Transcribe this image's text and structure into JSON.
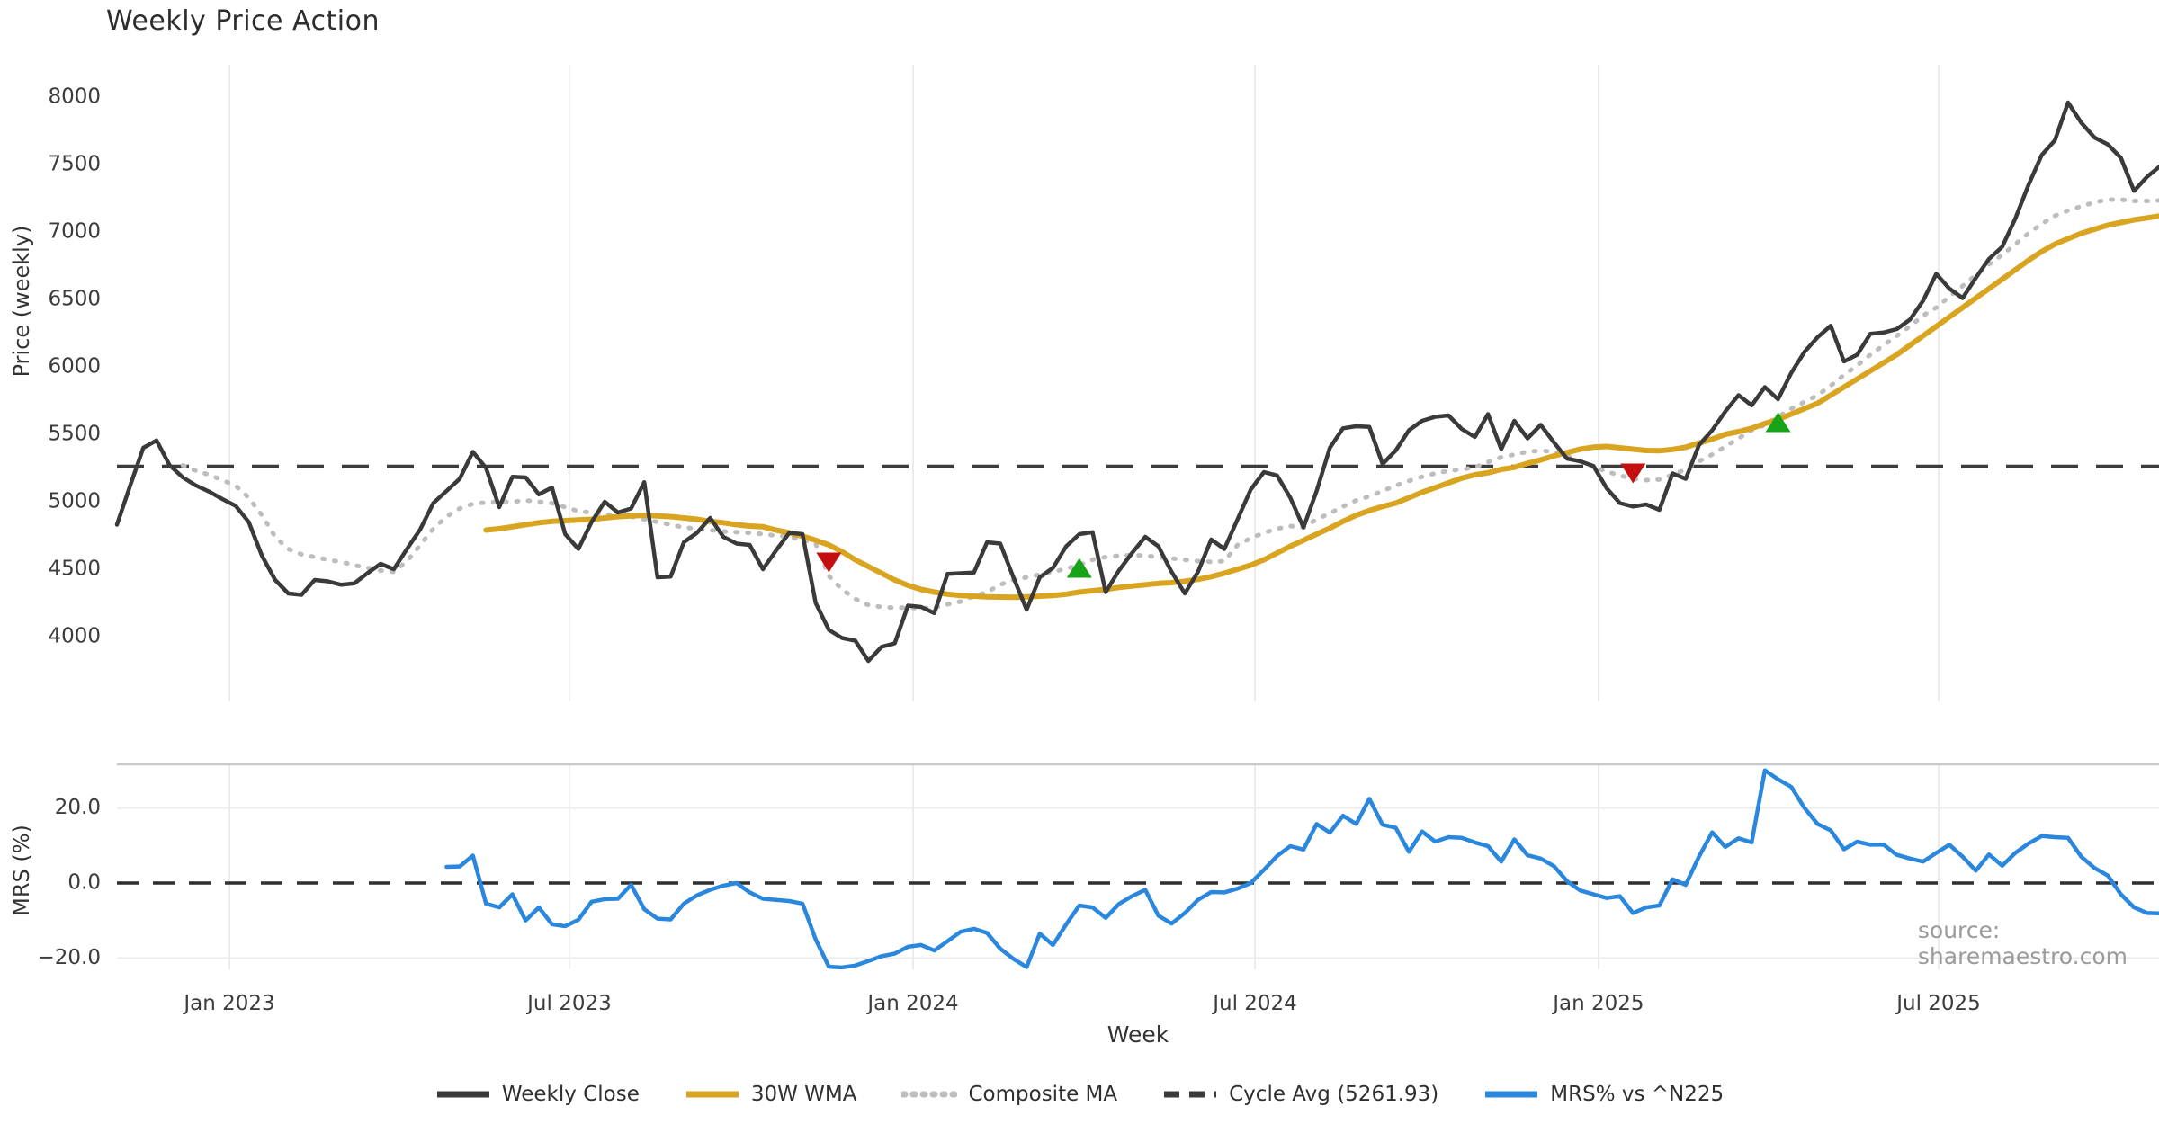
{
  "title": "Weekly Price Action",
  "source_note": "source: sharemaestro.com",
  "colors": {
    "weekly_close": "#3a3a3a",
    "wma_30w": "#d9a420",
    "composite_ma": "#bdbdbd",
    "cycle_avg": "#3b3b3b",
    "mrs": "#2a87de",
    "sell_marker": "#c40f0f",
    "buy_marker": "#17a317",
    "grid": "#ebebeb",
    "panel_border": "#c9c9c9",
    "tick_text": "#3c3c3c"
  },
  "chart_data": {
    "type": "line",
    "xlabel": "Week",
    "x_unit": "weekly index, week 0 = first plotted week (Nov 2022)",
    "weeks_total": 156,
    "xticks": [
      {
        "week": 8.53,
        "label": "Jan 2023"
      },
      {
        "week": 34.32,
        "label": "Jul 2023"
      },
      {
        "week": 60.39,
        "label": "Jan 2024"
      },
      {
        "week": 86.32,
        "label": "Jul 2024"
      },
      {
        "week": 112.38,
        "label": "Jan 2025"
      },
      {
        "week": 138.18,
        "label": "Jul 2025"
      }
    ],
    "panels": [
      {
        "ylabel": "Price (weekly)",
        "ylim": [
          3520,
          8320
        ],
        "yticks": [
          {
            "value": 4000,
            "label": "4000"
          },
          {
            "value": 4500,
            "label": "4500"
          },
          {
            "value": 5000,
            "label": "5000"
          },
          {
            "value": 5500,
            "label": "5500"
          },
          {
            "value": 6000,
            "label": "6000"
          },
          {
            "value": 6500,
            "label": "6500"
          },
          {
            "value": 7000,
            "label": "7000"
          },
          {
            "value": 7500,
            "label": "7500"
          },
          {
            "value": 8000,
            "label": "8000"
          }
        ],
        "hline": {
          "name": "Cycle Avg (5261.93)",
          "value": 5261.93,
          "style": "dashed",
          "color": "#3b3b3b"
        },
        "series": [
          {
            "name": "Composite MA",
            "color": "#bdbdbd",
            "style": "dotted",
            "width": 5,
            "start_week": 5,
            "values": [
              5270,
              5230,
              5200,
              5160,
              5120,
              5030,
              4900,
              4740,
              4650,
              4610,
              4590,
              4570,
              4555,
              4530,
              4510,
              4490,
              4480,
              4560,
              4680,
              4800,
              4890,
              4950,
              4985,
              4995,
              5000,
              5000,
              5010,
              5000,
              4990,
              4960,
              4930,
              4920,
              4905,
              4900,
              4890,
              4870,
              4850,
              4830,
              4810,
              4800,
              4790,
              4780,
              4775,
              4770,
              4760,
              4750,
              4740,
              4720,
              4690,
              4450,
              4350,
              4280,
              4235,
              4220,
              4215,
              4215,
              4210,
              4215,
              4240,
              4260,
              4300,
              4330,
              4385,
              4420,
              4440,
              4460,
              4480,
              4505,
              4530,
              4570,
              4590,
              4600,
              4605,
              4600,
              4590,
              4580,
              4570,
              4560,
              4555,
              4560,
              4680,
              4730,
              4770,
              4800,
              4820,
              4810,
              4870,
              4915,
              4965,
              5010,
              5040,
              5080,
              5120,
              5155,
              5185,
              5210,
              5230,
              5240,
              5255,
              5295,
              5330,
              5350,
              5370,
              5380,
              5370,
              5340,
              5300,
              5260,
              5225,
              5195,
              5170,
              5160,
              5165,
              5200,
              5240,
              5300,
              5350,
              5410,
              5470,
              5530,
              5570,
              5630,
              5690,
              5740,
              5790,
              5860,
              5940,
              6010,
              6090,
              6160,
              6230,
              6300,
              6380,
              6440,
              6520,
              6600,
              6680,
              6760,
              6830,
              6910,
              6990,
              7060,
              7120,
              7160,
              7190,
              7220,
              7240,
              7240,
              7230,
              7230,
              7235
            ]
          },
          {
            "name": "30W WMA",
            "color": "#d9a420",
            "style": "solid",
            "width": 6,
            "start_week": 28,
            "values": [
              4790,
              4800,
              4815,
              4830,
              4845,
              4855,
              4860,
              4865,
              4870,
              4880,
              4890,
              4895,
              4900,
              4895,
              4890,
              4880,
              4870,
              4855,
              4845,
              4830,
              4820,
              4815,
              4790,
              4770,
              4745,
              4715,
              4680,
              4630,
              4570,
              4520,
              4470,
              4420,
              4380,
              4350,
              4330,
              4315,
              4305,
              4300,
              4295,
              4293,
              4292,
              4295,
              4300,
              4305,
              4315,
              4330,
              4340,
              4350,
              4365,
              4375,
              4385,
              4395,
              4400,
              4410,
              4425,
              4445,
              4470,
              4500,
              4530,
              4570,
              4620,
              4670,
              4715,
              4760,
              4805,
              4855,
              4900,
              4935,
              4965,
              4990,
              5030,
              5070,
              5105,
              5140,
              5175,
              5200,
              5215,
              5240,
              5255,
              5285,
              5310,
              5340,
              5365,
              5390,
              5405,
              5410,
              5400,
              5390,
              5380,
              5378,
              5388,
              5405,
              5435,
              5465,
              5500,
              5520,
              5545,
              5580,
              5610,
              5650,
              5690,
              5730,
              5790,
              5850,
              5910,
              5970,
              6030,
              6090,
              6160,
              6230,
              6300,
              6370,
              6440,
              6510,
              6580,
              6650,
              6720,
              6790,
              6855,
              6910,
              6950,
              6990,
              7020,
              7050,
              7070,
              7090,
              7105,
              7120
            ]
          },
          {
            "name": "Weekly Close",
            "color": "#3a3a3a",
            "style": "solid",
            "width": 4.5,
            "start_week": 0,
            "values": [
              4830,
              5120,
              5400,
              5455,
              5270,
              5180,
              5120,
              5075,
              5020,
              4970,
              4850,
              4600,
              4420,
              4320,
              4310,
              4420,
              4410,
              4385,
              4395,
              4470,
              4540,
              4500,
              4650,
              4795,
              4990,
              5080,
              5170,
              5370,
              5250,
              4960,
              5185,
              5180,
              5055,
              5105,
              4760,
              4650,
              4850,
              5000,
              4920,
              4950,
              5145,
              4440,
              4445,
              4700,
              4770,
              4880,
              4740,
              4690,
              4680,
              4500,
              4640,
              4770,
              4760,
              4250,
              4050,
              3990,
              3970,
              3820,
              3925,
              3950,
              4230,
              4220,
              4175,
              4465,
              4470,
              4475,
              4700,
              4690,
              4440,
              4200,
              4440,
              4510,
              4670,
              4760,
              4775,
              4330,
              4490,
              4620,
              4740,
              4670,
              4480,
              4320,
              4480,
              4720,
              4650,
              4870,
              5090,
              5220,
              5195,
              5030,
              4810,
              5080,
              5400,
              5545,
              5560,
              5555,
              5280,
              5380,
              5530,
              5600,
              5630,
              5640,
              5540,
              5480,
              5650,
              5390,
              5600,
              5470,
              5570,
              5440,
              5320,
              5300,
              5265,
              5100,
              4990,
              4965,
              4980,
              4940,
              5210,
              5170,
              5420,
              5530,
              5670,
              5790,
              5715,
              5850,
              5760,
              5955,
              6110,
              6220,
              6305,
              6040,
              6090,
              6245,
              6255,
              6280,
              6350,
              6490,
              6690,
              6580,
              6510,
              6660,
              6800,
              6890,
              7100,
              7350,
              7570,
              7680,
              7960,
              7810,
              7700,
              7650,
              7550,
              7305,
              7410,
              7490
            ]
          }
        ],
        "markers": [
          {
            "type": "sell",
            "shape": "triangle-down",
            "color": "#c40f0f",
            "week": 54,
            "value": 4550
          },
          {
            "type": "buy",
            "shape": "triangle-up",
            "color": "#17a317",
            "week": 73,
            "value": 4510
          },
          {
            "type": "sell",
            "shape": "triangle-down",
            "color": "#c40f0f",
            "week": 115,
            "value": 5210
          },
          {
            "type": "buy",
            "shape": "triangle-up",
            "color": "#17a317",
            "week": 126,
            "value": 5590
          }
        ]
      },
      {
        "ylabel": "MRS (%)",
        "ylim": [
          -23,
          31.6
        ],
        "yticks": [
          {
            "value": -20,
            "label": "−20.0"
          },
          {
            "value": 0,
            "label": "0.0"
          },
          {
            "value": 20,
            "label": "20.0"
          }
        ],
        "hline": {
          "name": "zero line",
          "value": 0,
          "style": "dashed",
          "color": "#2f2f2f"
        },
        "grid_values": [
          20,
          -20
        ],
        "series": [
          {
            "name": "MRS% vs ^N225",
            "color": "#2a87de",
            "style": "solid",
            "width": 4.5,
            "start_week": 25,
            "values": [
              4.3,
              4.4,
              7.3,
              -5.5,
              -6.5,
              -3.0,
              -10.0,
              -6.5,
              -11.0,
              -11.5,
              -9.8,
              -5.0,
              -4.3,
              -4.2,
              -0.5,
              -7.0,
              -9.5,
              -9.7,
              -5.5,
              -3.3,
              -1.8,
              -0.7,
              0.0,
              -2.5,
              -4.2,
              -4.5,
              -4.8,
              -5.5,
              -15.0,
              -22.3,
              -22.5,
              -22.0,
              -20.8,
              -19.5,
              -18.8,
              -17.0,
              -16.5,
              -18.0,
              -15.5,
              -13.0,
              -12.2,
              -13.3,
              -17.5,
              -20.2,
              -22.4,
              -13.5,
              -16.5,
              -11.0,
              -6.0,
              -6.5,
              -9.3,
              -5.6,
              -3.5,
              -1.8,
              -8.7,
              -10.8,
              -8.0,
              -4.5,
              -2.4,
              -2.5,
              -1.5,
              0.0,
              3.5,
              7.2,
              9.8,
              8.9,
              15.7,
              13.4,
              17.9,
              15.7,
              22.4,
              15.5,
              14.7,
              8.3,
              13.7,
              11.0,
              12.2,
              12.0,
              10.8,
              9.8,
              5.7,
              11.6,
              7.4,
              6.5,
              4.5,
              0.5,
              -2.0,
              -3.0,
              -4.0,
              -3.5,
              -8.0,
              -6.5,
              -6.0,
              1.0,
              -0.5,
              7.0,
              13.5,
              9.6,
              11.9,
              10.8,
              30.0,
              27.6,
              25.6,
              20.0,
              15.7,
              14.0,
              9.0,
              11.0,
              10.2,
              10.2,
              7.5,
              6.5,
              5.7,
              8.0,
              10.2,
              7.0,
              3.3,
              7.6,
              4.6,
              8.0,
              10.5,
              12.5,
              12.2,
              12.0,
              7.0,
              4.0,
              2.0,
              -3.0,
              -6.5,
              -8.0,
              -8.1
            ]
          }
        ]
      }
    ],
    "legend": [
      {
        "label": "Weekly Close",
        "color": "#3a3a3a",
        "style": "solid"
      },
      {
        "label": "30W WMA",
        "color": "#d9a420",
        "style": "solid"
      },
      {
        "label": "Composite MA",
        "color": "#bdbdbd",
        "style": "dotted"
      },
      {
        "label": "Cycle Avg (5261.93)",
        "color": "#3b3b3b",
        "style": "dashed"
      },
      {
        "label": "MRS% vs ^N225",
        "color": "#2a87de",
        "style": "solid"
      }
    ]
  }
}
